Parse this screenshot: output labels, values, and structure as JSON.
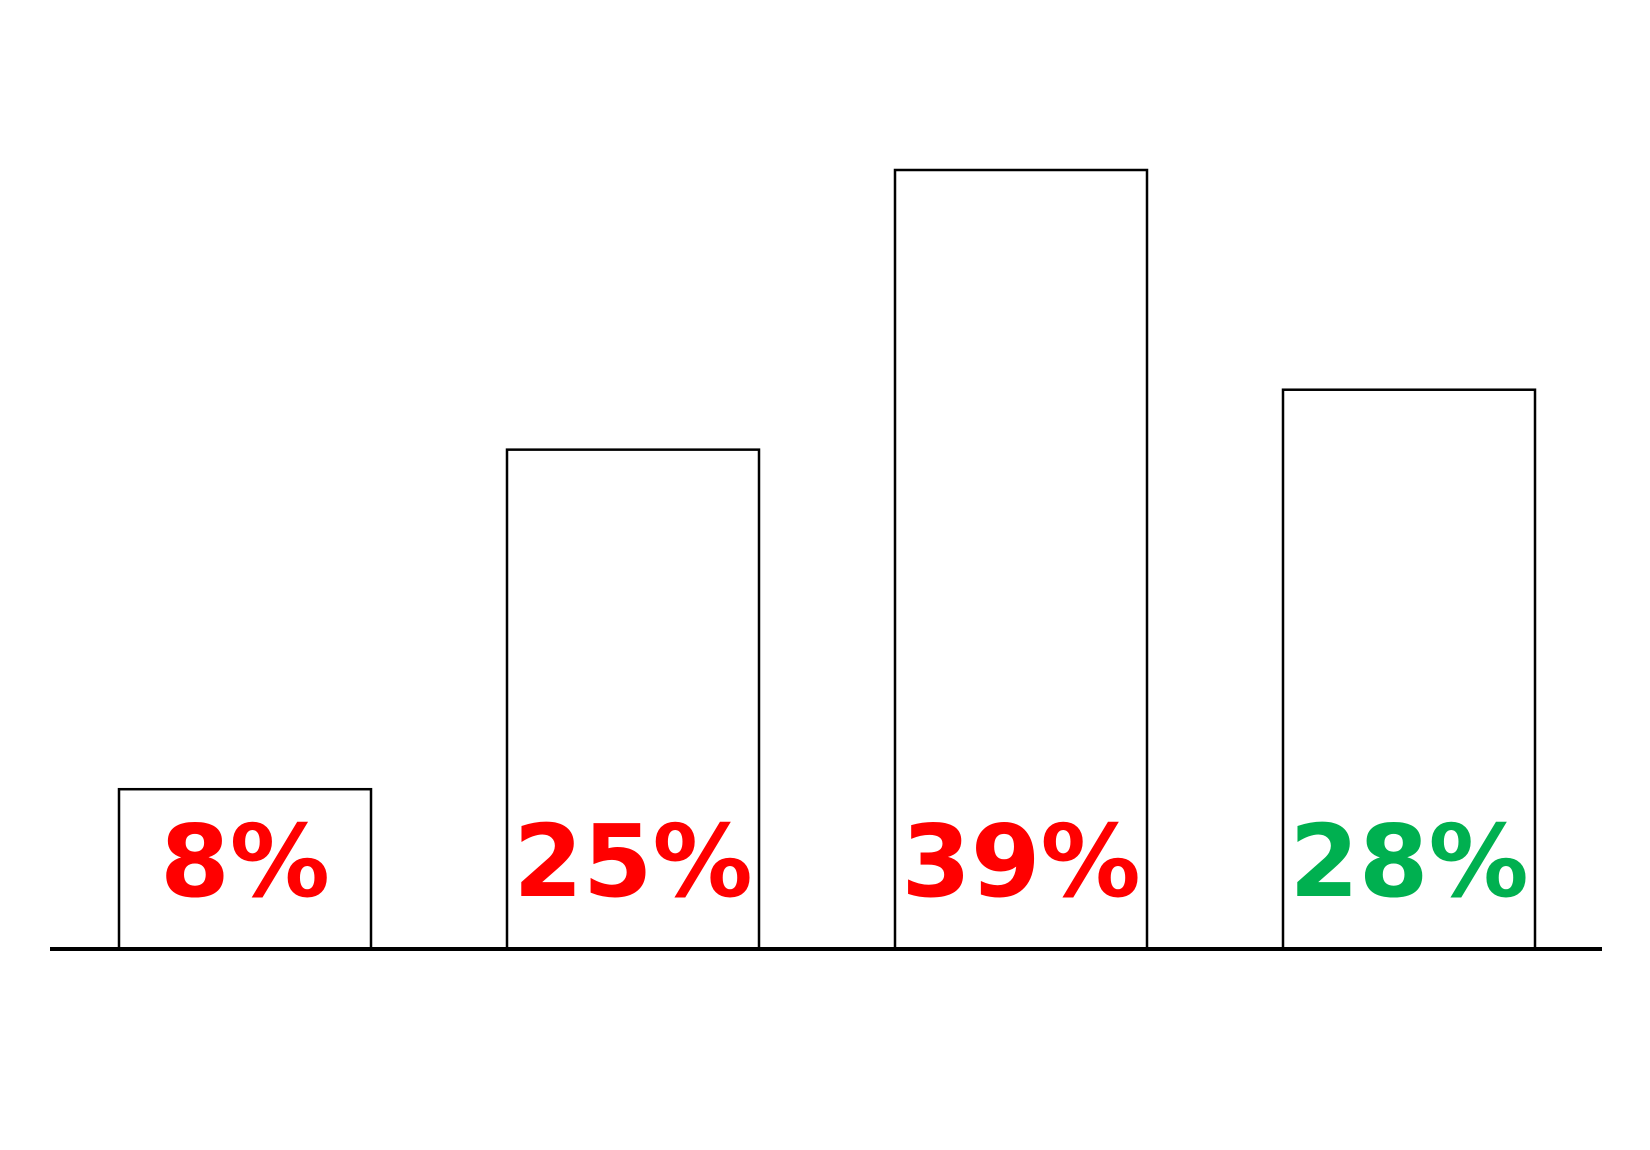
{
  "chart_data": {
    "type": "bar",
    "categories": [
      "",
      "",
      "",
      ""
    ],
    "values": [
      8,
      25,
      39,
      28
    ],
    "data_labels": [
      "8%",
      "25%",
      "39%",
      "28%"
    ],
    "label_colors": [
      "#ff0000",
      "#ff0000",
      "#ff0000",
      "#00b050"
    ],
    "bar_fill": "#ffffff",
    "bar_outline": "#000000",
    "ylim": [
      0,
      39
    ],
    "title": "",
    "xlabel": "",
    "ylabel": "",
    "grid": false,
    "legend": "none"
  }
}
